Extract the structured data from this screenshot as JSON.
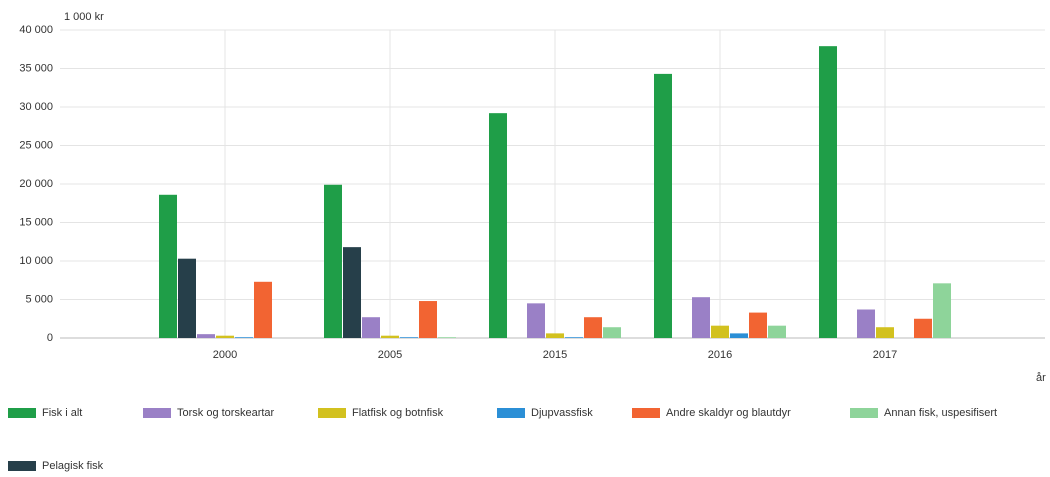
{
  "chart_data": {
    "type": "bar",
    "y_axis_label": "1 000 kr",
    "x_axis_label": "år",
    "categories": [
      "2000",
      "2005",
      "2015",
      "2016",
      "2017"
    ],
    "series": [
      {
        "name": "Fisk i alt",
        "color": "#1f9e48",
        "values": [
          18600,
          19900,
          29200,
          34300,
          37900
        ]
      },
      {
        "name": "Torsk og torskeartar",
        "color": "#9a80c6",
        "values": [
          500,
          2700,
          4500,
          5300,
          3700
        ]
      },
      {
        "name": "Flatfisk og botnfisk",
        "color": "#d2c11f",
        "values": [
          300,
          300,
          600,
          1600,
          1400
        ]
      },
      {
        "name": "Djupvassfisk",
        "color": "#2b8fd6",
        "values": [
          100,
          100,
          100,
          600,
          null
        ]
      },
      {
        "name": "Andre skaldyr og blautdyr",
        "color": "#f26432",
        "values": [
          7300,
          4800,
          2700,
          3300,
          2500
        ]
      },
      {
        "name": "Annan fisk, uspesifisert",
        "color": "#8ed49a",
        "values": [
          null,
          100,
          1400,
          1600,
          7100
        ]
      },
      {
        "name": "Pelagisk fisk",
        "color": "#263f4a",
        "values": [
          10300,
          11800,
          null,
          null,
          null
        ]
      }
    ],
    "ylim": [
      0,
      40000
    ],
    "yticks": [
      0,
      {
        "value": 5000,
        "label": "5 000"
      },
      {
        "value": 10000,
        "label": "10 000"
      },
      {
        "value": 15000,
        "label": "15 000"
      },
      {
        "value": 20000,
        "label": "20 000"
      },
      {
        "value": 25000,
        "label": "25 000"
      },
      {
        "value": 30000,
        "label": "30 000"
      },
      {
        "value": 35000,
        "label": "35 000"
      },
      {
        "value": 40000,
        "label": "40 000"
      }
    ],
    "grid": true
  }
}
